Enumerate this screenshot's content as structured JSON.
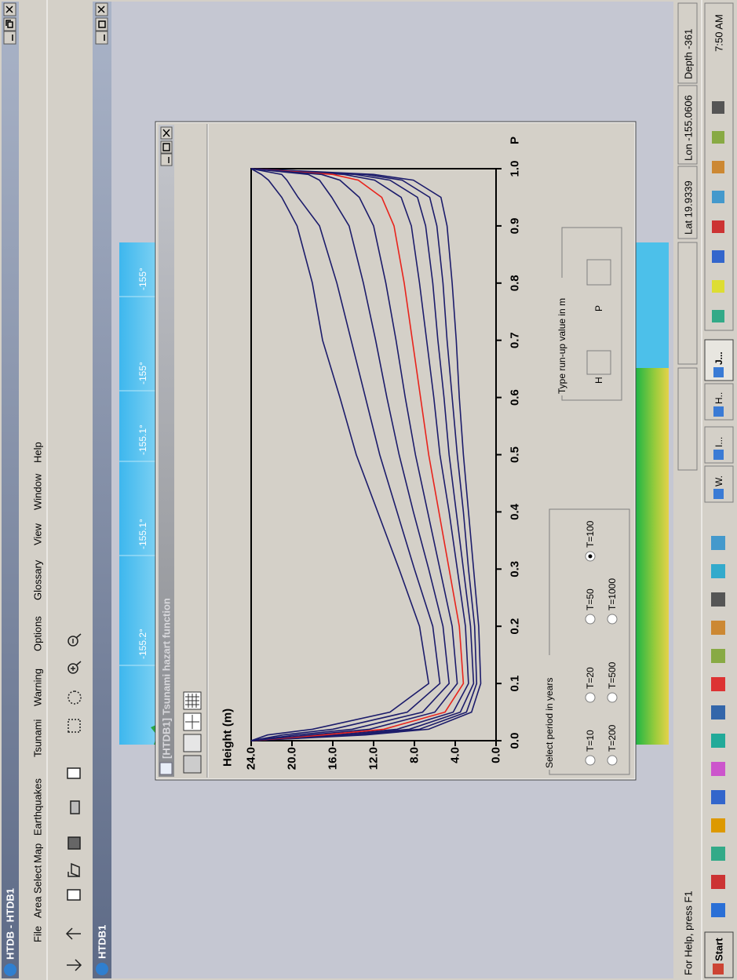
{
  "app": {
    "title": "HTDB - HTDB1",
    "menu": [
      "File",
      "Area Select",
      "Map",
      "Earthquakes",
      "Tsunami",
      "Warning",
      "Options",
      "Glossary",
      "View",
      "Window",
      "Help"
    ],
    "child_title": "HTDB1"
  },
  "map": {
    "labels": [
      "-155.2°",
      "-155.1°",
      "-155.1°",
      "-155°",
      "-155°"
    ]
  },
  "dialog": {
    "title": "[HTDB1] Tsunami hazart function",
    "period_group": {
      "title": "Select period in years",
      "options": [
        "T=10",
        "T=20",
        "T=50",
        "T=100",
        "T=200",
        "T=500",
        "T=1000"
      ],
      "selected": 3
    },
    "runup_group": {
      "title": "Type run-up value in m",
      "fields": [
        "H",
        "P"
      ]
    }
  },
  "chart_data": {
    "type": "line",
    "y_label": "Height (m)",
    "x_label": "P",
    "x": [
      0,
      0.01,
      0.02,
      0.05,
      0.1,
      0.2,
      0.3,
      0.4,
      0.5,
      0.6,
      0.7,
      0.8,
      0.9,
      0.95,
      0.98,
      0.99,
      1
    ],
    "xlim": [
      0,
      1
    ],
    "ylim": [
      0,
      24
    ],
    "xticks": [
      {
        "value": 0,
        "label": "0.0"
      },
      0.1,
      0.2,
      0.3,
      0.4,
      0.5,
      0.6,
      0.7,
      0.8,
      0.9,
      {
        "value": 1,
        "label": "1.0"
      }
    ],
    "yticks": [
      {
        "value": 0,
        "label": "0.0"
      },
      {
        "value": 4,
        "label": "4.0"
      },
      {
        "value": 8,
        "label": "8.0"
      },
      {
        "value": 12,
        "label": "12.0"
      },
      {
        "value": 16,
        "label": "16.0"
      },
      {
        "value": 20,
        "label": "20.0"
      },
      {
        "value": 24,
        "label": "24.0"
      }
    ],
    "series": [
      {
        "color": "#1c1c6b",
        "values": [
          24,
          12.8,
          6.6,
          2.4,
          1.5,
          1.7,
          2.2,
          2.7,
          3.2,
          3.6,
          3.9,
          4.3,
          4.8,
          5.4,
          8.1,
          12.0,
          24
        ]
      },
      {
        "color": "#1c1c6b",
        "values": [
          24,
          13.6,
          7.5,
          2.9,
          1.9,
          2.1,
          2.7,
          3.2,
          3.8,
          4.3,
          4.8,
          5.2,
          5.8,
          6.5,
          9.2,
          12.8,
          24
        ]
      },
      {
        "color": "#1c1c6b",
        "values": [
          24,
          14.6,
          8.5,
          3.5,
          2.2,
          2.5,
          3.2,
          3.9,
          4.6,
          5.1,
          5.7,
          6.2,
          6.9,
          7.7,
          10.4,
          13.8,
          24
        ]
      },
      {
        "color": "#1c1c6b",
        "values": [
          24,
          15.8,
          9.7,
          4.2,
          2.7,
          3.0,
          3.8,
          4.6,
          5.5,
          6.1,
          6.8,
          7.5,
          8.3,
          9.3,
          11.9,
          14.9,
          24
        ]
      },
      {
        "color": "#e8231c",
        "values": [
          24,
          17,
          11,
          5,
          3.2,
          3.6,
          4.6,
          5.6,
          6.6,
          7.4,
          8.2,
          9.0,
          10.0,
          11.2,
          13.5,
          16,
          24
        ]
      },
      {
        "color": "#1c1c6b",
        "values": [
          24,
          18.2,
          12.4,
          6.0,
          3.8,
          4.3,
          5.5,
          6.7,
          7.9,
          8.9,
          9.8,
          10.8,
          12.0,
          13.4,
          15.3,
          17.1,
          24
        ]
      },
      {
        "color": "#1c1c6b",
        "values": [
          24,
          19.6,
          14.1,
          7.2,
          4.6,
          5.2,
          6.6,
          8.1,
          9.5,
          10.7,
          11.8,
          13.0,
          14.4,
          16.1,
          17.3,
          18.4,
          24
        ]
      },
      {
        "color": "#1c1c6b",
        "values": [
          24,
          20.9,
          16.0,
          8.7,
          5.5,
          6.2,
          8.0,
          9.7,
          11.4,
          12.8,
          14.2,
          15.6,
          17.3,
          19.4,
          20.5,
          21,
          24
        ]
      },
      {
        "color": "#1c1c6b",
        "values": [
          24,
          22.4,
          18.0,
          10.4,
          6.6,
          7.5,
          9.5,
          11.6,
          13.7,
          15.3,
          17.0,
          18.0,
          19.5,
          21,
          22.3,
          23,
          24
        ]
      }
    ]
  },
  "status_bar": {
    "help": "For Help, press F1",
    "lat": "Lat 19.9339",
    "lon": "Lon -155.0606",
    "depth": "Depth -361"
  },
  "taskbar": {
    "start": "Start",
    "tasks": [
      "W.",
      "I...",
      "H..",
      "J..."
    ],
    "active": 3,
    "clock": "7:50 AM"
  }
}
